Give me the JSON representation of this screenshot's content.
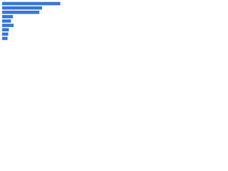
{
  "chart_data": {
    "type": "barh",
    "categories": [
      null,
      null,
      null,
      null,
      null,
      null,
      null,
      null,
      null
    ],
    "values": [
      86,
      59,
      55,
      16,
      13,
      17,
      10,
      9,
      8
    ],
    "color": "#3a78d8",
    "xlim": [
      0,
      100
    ]
  }
}
